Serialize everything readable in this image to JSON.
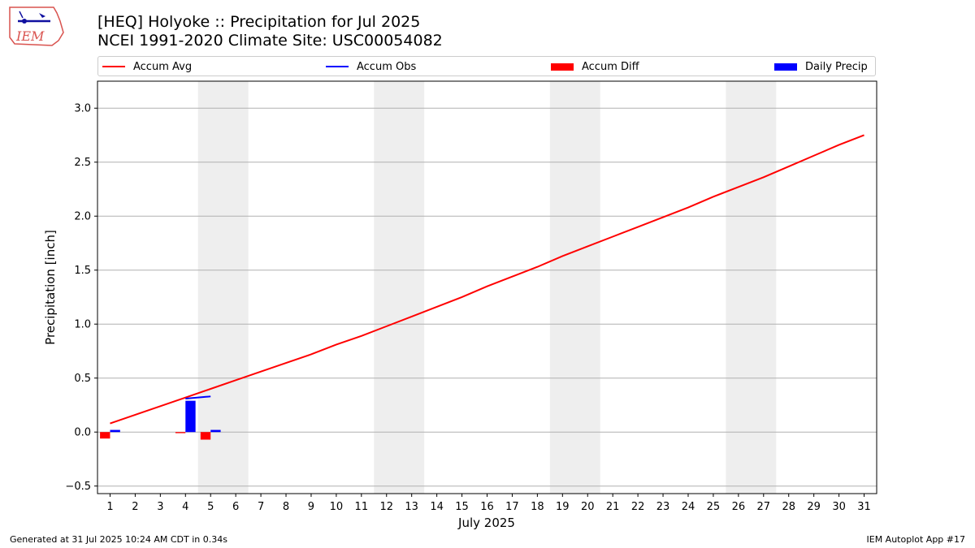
{
  "title_line1": "[HEQ] Holyoke :: Precipitation for Jul 2025",
  "title_line2": "NCEI 1991-2020 Climate Site: USC00054082",
  "logo_text": "IEM",
  "footer_left": "Generated at 31 Jul 2025 10:24 AM CDT in 0.34s",
  "footer_right": "IEM Autoplot App #17",
  "legend": {
    "accum_avg": "Accum Avg",
    "accum_obs": "Accum Obs",
    "accum_diff": "Accum Diff",
    "daily_precip": "Daily Precip"
  },
  "colors": {
    "accum_avg": "#ff0000",
    "accum_obs": "#0000ff",
    "accum_diff": "#ff0000",
    "daily_precip": "#0000ff",
    "weekend_shade": "#eeeeee",
    "grid": "#b0b0b0"
  },
  "chart_data": {
    "type": "bar",
    "xlabel": "July 2025",
    "ylabel": "Precipitation [inch]",
    "ylim": [
      -0.57,
      3.25
    ],
    "xlim": [
      0.5,
      31.5
    ],
    "yticks": [
      "−0.5",
      "0.0",
      "0.5",
      "1.0",
      "1.5",
      "2.0",
      "2.5",
      "3.0"
    ],
    "ytick_values": [
      -0.5,
      0,
      0.5,
      1.0,
      1.5,
      2.0,
      2.5,
      3.0
    ],
    "x_days": [
      "1",
      "2",
      "3",
      "4",
      "5",
      "6",
      "7",
      "8",
      "9",
      "10",
      "11",
      "12",
      "13",
      "14",
      "15",
      "16",
      "17",
      "18",
      "19",
      "20",
      "21",
      "22",
      "23",
      "24",
      "25",
      "26",
      "27",
      "28",
      "29",
      "30",
      "31"
    ],
    "grid": "horizontal",
    "weekend_shading_days": [
      [
        5,
        6
      ],
      [
        12,
        13
      ],
      [
        19,
        20
      ],
      [
        26,
        27
      ]
    ],
    "series": [
      {
        "name": "Accum Avg",
        "type": "line",
        "x": [
          1,
          2,
          3,
          4,
          5,
          6,
          7,
          8,
          9,
          10,
          11,
          12,
          13,
          14,
          15,
          16,
          17,
          18,
          19,
          20,
          21,
          22,
          23,
          24,
          25,
          26,
          27,
          28,
          29,
          30,
          31
        ],
        "values": [
          0.08,
          0.16,
          0.24,
          0.32,
          0.4,
          0.48,
          0.56,
          0.64,
          0.72,
          0.81,
          0.89,
          0.98,
          1.07,
          1.16,
          1.25,
          1.35,
          1.44,
          1.53,
          1.63,
          1.72,
          1.81,
          1.9,
          1.99,
          2.08,
          2.18,
          2.27,
          2.36,
          2.46,
          2.56,
          2.66,
          2.75
        ]
      },
      {
        "name": "Accum Obs",
        "type": "line",
        "x": [
          4,
          5
        ],
        "values": [
          0.31,
          0.33
        ]
      },
      {
        "name": "Accum Diff",
        "type": "bar",
        "x": [
          1,
          4,
          5
        ],
        "values": [
          -0.06,
          -0.01,
          -0.07
        ]
      },
      {
        "name": "Daily Precip",
        "type": "bar",
        "x": [
          1,
          4,
          5
        ],
        "values": [
          0.02,
          0.29,
          0.02
        ]
      }
    ]
  }
}
